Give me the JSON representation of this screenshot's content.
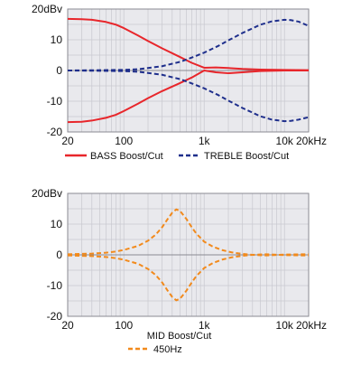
{
  "chart_data": [
    {
      "type": "line",
      "x_scale": "log",
      "xlim": [
        20,
        20000
      ],
      "ylim": [
        -20,
        20
      ],
      "x_ticks": [
        {
          "value": 20,
          "label": "20"
        },
        {
          "value": 100,
          "label": "100"
        },
        {
          "value": 1000,
          "label": "1k"
        },
        {
          "value": 10000,
          "label": "10k"
        },
        {
          "value": 20000,
          "label": "20kHz"
        }
      ],
      "y_ticks": [
        {
          "value": 20,
          "label": "20dBv"
        },
        {
          "value": 10,
          "label": "10"
        },
        {
          "value": 0,
          "label": "0"
        },
        {
          "value": -10,
          "label": "-10"
        },
        {
          "value": -20,
          "label": "-20"
        }
      ],
      "grid": true,
      "legend": "bottom",
      "series": [
        {
          "name": "BASS Boost/Cut",
          "color": "#e8262b",
          "style": "solid",
          "curves": [
            {
              "x": [
                20,
                30,
                40,
                60,
                80,
                100,
                150,
                200,
                300,
                500,
                700,
                1000,
                1400,
                2000,
                3000,
                5000,
                10000,
                20000
              ],
              "y": [
                16.8,
                16.7,
                16.5,
                15.8,
                14.9,
                13.8,
                11.4,
                9.6,
                7.2,
                4.4,
                2.5,
                0.9,
                1.0,
                0.8,
                0.5,
                0.3,
                0.2,
                0.1
              ]
            },
            {
              "x": [
                20,
                30,
                40,
                60,
                80,
                100,
                150,
                200,
                300,
                500,
                700,
                1000,
                1400,
                2000,
                3000,
                5000,
                10000,
                20000
              ],
              "y": [
                -16.8,
                -16.7,
                -16.3,
                -15.4,
                -14.4,
                -13.2,
                -10.8,
                -9.0,
                -6.7,
                -4.1,
                -2.3,
                0.0,
                -0.6,
                -0.9,
                -0.6,
                -0.2,
                0.0,
                0.0
              ]
            }
          ]
        },
        {
          "name": "TREBLE Boost/Cut",
          "color": "#1f2f8c",
          "style": "dashed",
          "curves": [
            {
              "x": [
                20,
                50,
                100,
                150,
                200,
                300,
                500,
                700,
                1000,
                1500,
                2000,
                3000,
                5000,
                7000,
                10000,
                12000,
                15000,
                20000
              ],
              "y": [
                0.0,
                0.1,
                0.2,
                0.4,
                0.8,
                1.4,
                2.8,
                4.2,
                5.8,
                8.0,
                9.8,
                12.2,
                14.9,
                16.0,
                16.5,
                16.4,
                15.9,
                14.5
              ]
            },
            {
              "x": [
                20,
                50,
                100,
                150,
                200,
                300,
                500,
                700,
                1000,
                1500,
                2000,
                3000,
                5000,
                7000,
                10000,
                12000,
                15000,
                20000
              ],
              "y": [
                0.0,
                -0.1,
                -0.2,
                -0.4,
                -0.8,
                -1.4,
                -2.8,
                -4.2,
                -5.8,
                -8.0,
                -9.8,
                -12.2,
                -14.9,
                -16.0,
                -16.5,
                -16.4,
                -16.0,
                -15.2
              ]
            }
          ]
        }
      ]
    },
    {
      "type": "line",
      "x_scale": "log",
      "xlim": [
        20,
        20000
      ],
      "ylim": [
        -20,
        20
      ],
      "x_ticks": [
        {
          "value": 20,
          "label": "20"
        },
        {
          "value": 100,
          "label": "100"
        },
        {
          "value": 1000,
          "label": "1k"
        },
        {
          "value": 10000,
          "label": "10k"
        },
        {
          "value": 20000,
          "label": "20kHz"
        }
      ],
      "y_ticks": [
        {
          "value": 20,
          "label": "20dBv"
        },
        {
          "value": 10,
          "label": "10"
        },
        {
          "value": 0,
          "label": "0"
        },
        {
          "value": -10,
          "label": "-10"
        },
        {
          "value": -20,
          "label": "-20"
        }
      ],
      "grid": true,
      "legend": "bottom",
      "title_below": "MID Boost/Cut",
      "series": [
        {
          "name": "450Hz",
          "color": "#f28a1c",
          "style": "dashed",
          "curves": [
            {
              "x": [
                20,
                40,
                60,
                80,
                100,
                150,
                200,
                250,
                300,
                350,
                400,
                450,
                500,
                600,
                700,
                800,
                1000,
                1300,
                1700,
                2200,
                3000,
                4000,
                6000,
                10000,
                20000
              ],
              "y": [
                0.2,
                0.4,
                0.7,
                1.1,
                1.6,
                2.9,
                4.6,
                6.6,
                9.0,
                11.6,
                13.7,
                14.8,
                14.3,
                11.7,
                9.0,
                6.9,
                4.3,
                2.6,
                1.5,
                0.8,
                0.3,
                0.0,
                -0.2,
                0.1,
                0.2
              ]
            },
            {
              "x": [
                20,
                40,
                60,
                80,
                100,
                150,
                200,
                250,
                300,
                350,
                400,
                450,
                500,
                600,
                700,
                800,
                1000,
                1300,
                1700,
                2200,
                3000,
                4000,
                6000,
                10000,
                20000
              ],
              "y": [
                -0.2,
                -0.4,
                -0.7,
                -1.1,
                -1.6,
                -2.9,
                -4.6,
                -6.6,
                -9.0,
                -11.6,
                -13.7,
                -14.8,
                -14.3,
                -11.7,
                -9.0,
                -6.9,
                -4.3,
                -2.6,
                -1.5,
                -0.8,
                -0.3,
                0.0,
                0.2,
                -0.1,
                -0.2
              ]
            }
          ]
        }
      ]
    }
  ]
}
